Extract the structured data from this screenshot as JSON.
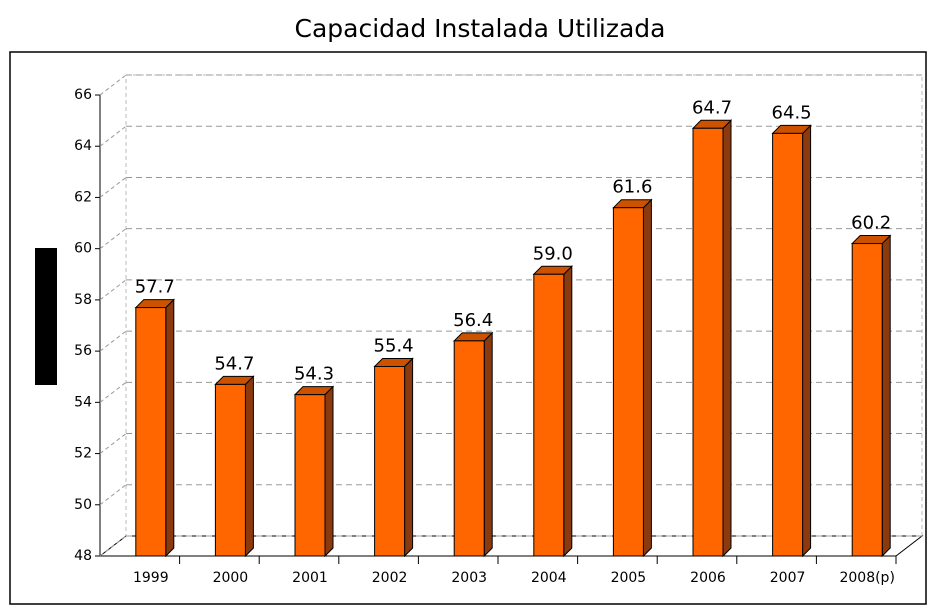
{
  "chart_data": {
    "type": "bar3d",
    "title": "Capacidad Instalada Utilizada",
    "categories": [
      "1999",
      "2000",
      "2001",
      "2002",
      "2003",
      "2004",
      "2005",
      "2006",
      "2007",
      "2008(p)"
    ],
    "values": [
      57.7,
      54.7,
      54.3,
      55.4,
      56.4,
      59.0,
      61.6,
      64.7,
      64.5,
      60.2
    ],
    "value_labels": [
      "57.7",
      "54.7",
      "54.3",
      "55.4",
      "56.4",
      "59.0",
      "61.6",
      "64.7",
      "64.5",
      "60.2"
    ],
    "color": "#ff6600",
    "ylim": [
      48,
      66
    ],
    "yticks": [
      48,
      50,
      52,
      54,
      56,
      58,
      60,
      62,
      64,
      66
    ],
    "grid": true
  }
}
